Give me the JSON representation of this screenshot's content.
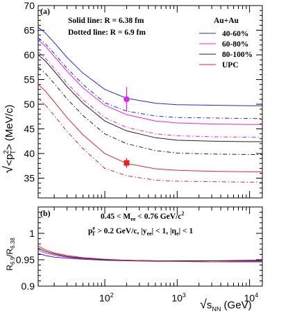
{
  "chart_data": [
    {
      "type": "line",
      "panel_label": "(a)",
      "xlabel": "√s_NN (GeV)",
      "ylabel": "√<p_T²> (MeV/c)",
      "xscale": "log",
      "xlim": [
        12,
        15000
      ],
      "ylim": [
        31,
        70
      ],
      "yticks": [
        35,
        40,
        45,
        50,
        55,
        60,
        65,
        70
      ],
      "annotations": [
        "Solid line: R = 6.38 fm",
        "Dotted line: R = 6.9 fm",
        "Au+Au"
      ],
      "legend": {
        "placement": "top-right",
        "entries": [
          "40-60%",
          "60-80%",
          "80-100%",
          "UPC"
        ]
      },
      "x": [
        12,
        15,
        20,
        30,
        50,
        100,
        200,
        500,
        1000,
        3000,
        10000,
        15000
      ],
      "series": [
        {
          "name": "40-60%",
          "style": "solid",
          "color": "#1f2bd6",
          "values": [
            65.6,
            64.5,
            62.5,
            59.5,
            56.3,
            53.0,
            51.2,
            50.2,
            49.9,
            49.8,
            49.7,
            49.7
          ]
        },
        {
          "name": "40-60%",
          "style": "dashdot",
          "color": "#1f2bd6",
          "values": [
            63.5,
            62.3,
            60.3,
            57.3,
            54.0,
            50.3,
            48.6,
            47.6,
            47.3,
            47.2,
            47.1,
            47.1
          ]
        },
        {
          "name": "60-80%",
          "style": "solid",
          "color": "#e025e8",
          "values": [
            63.0,
            61.8,
            59.7,
            56.7,
            53.3,
            49.8,
            47.9,
            46.6,
            46.2,
            46.0,
            45.9,
            45.9
          ]
        },
        {
          "name": "60-80%",
          "style": "dashdot",
          "color": "#e025e8",
          "values": [
            60.6,
            59.4,
            57.3,
            54.3,
            50.9,
            47.3,
            45.3,
            44.0,
            43.6,
            43.4,
            43.3,
            43.3
          ]
        },
        {
          "name": "80-100%",
          "style": "solid",
          "color": "#222222",
          "values": [
            60.0,
            58.8,
            56.7,
            53.6,
            50.2,
            46.6,
            44.6,
            43.2,
            42.7,
            42.5,
            42.4,
            42.4
          ]
        },
        {
          "name": "80-100%",
          "style": "dashdot",
          "color": "#222222",
          "values": [
            57.5,
            56.3,
            54.2,
            51.1,
            47.7,
            44.0,
            42.0,
            40.6,
            40.1,
            39.9,
            39.8,
            39.8
          ]
        },
        {
          "name": "UPC",
          "style": "solid",
          "color": "#e3252b",
          "values": [
            54.0,
            52.7,
            50.5,
            47.3,
            43.8,
            40.0,
            38.0,
            36.9,
            36.6,
            36.4,
            36.3,
            36.3
          ]
        },
        {
          "name": "UPC",
          "style": "dashdot",
          "color": "#e3252b",
          "values": [
            51.2,
            49.9,
            47.7,
            44.5,
            41.0,
            37.0,
            35.5,
            34.6,
            34.4,
            34.3,
            34.2,
            34.2
          ]
        }
      ],
      "points": [
        {
          "x": 200,
          "y": 51.0,
          "yerr": 2.5,
          "marker": "circle",
          "color": "#e025e8"
        },
        {
          "x": 200,
          "y": 38.1,
          "yerr": 1.0,
          "marker": "square",
          "color": "#e3252b"
        }
      ]
    },
    {
      "type": "line",
      "panel_label": "(b)",
      "xlabel": "√s_NN (GeV)",
      "ylabel": "R_6.9/R_6.38",
      "xscale": "log",
      "xlim": [
        12,
        15000
      ],
      "ylim": [
        0.9,
        1.05
      ],
      "yticks": [
        0.9,
        0.95,
        1
      ],
      "xticks": [
        100,
        1000,
        10000
      ],
      "annotations": [
        "0.45 < M_ee < 0.76 GeV/c²",
        "p_T^e > 0.2 GeV/c, |y_ee| < 1, |η_e| < 1"
      ],
      "x": [
        12,
        15,
        20,
        30,
        50,
        100,
        200,
        500,
        1000,
        3000,
        10000,
        15000
      ],
      "series": [
        {
          "name": "40-60%",
          "style": "solid",
          "color": "#1f2bd6",
          "values": [
            0.962,
            0.958,
            0.955,
            0.953,
            0.951,
            0.949,
            0.948,
            0.947,
            0.947,
            0.946,
            0.946,
            0.946
          ]
        },
        {
          "name": "60-80%",
          "style": "solid",
          "color": "#e025e8",
          "values": [
            0.968,
            0.963,
            0.959,
            0.955,
            0.952,
            0.95,
            0.949,
            0.948,
            0.948,
            0.948,
            0.948,
            0.948
          ]
        },
        {
          "name": "80-100%",
          "style": "solid",
          "color": "#222222",
          "values": [
            0.972,
            0.966,
            0.961,
            0.956,
            0.953,
            0.95,
            0.949,
            0.948,
            0.948,
            0.948,
            0.949,
            0.949
          ]
        },
        {
          "name": "UPC",
          "style": "solid",
          "color": "#e3252b",
          "values": [
            0.976,
            0.969,
            0.963,
            0.958,
            0.954,
            0.951,
            0.949,
            0.948,
            0.947,
            0.946,
            0.947,
            0.947
          ]
        }
      ]
    }
  ]
}
